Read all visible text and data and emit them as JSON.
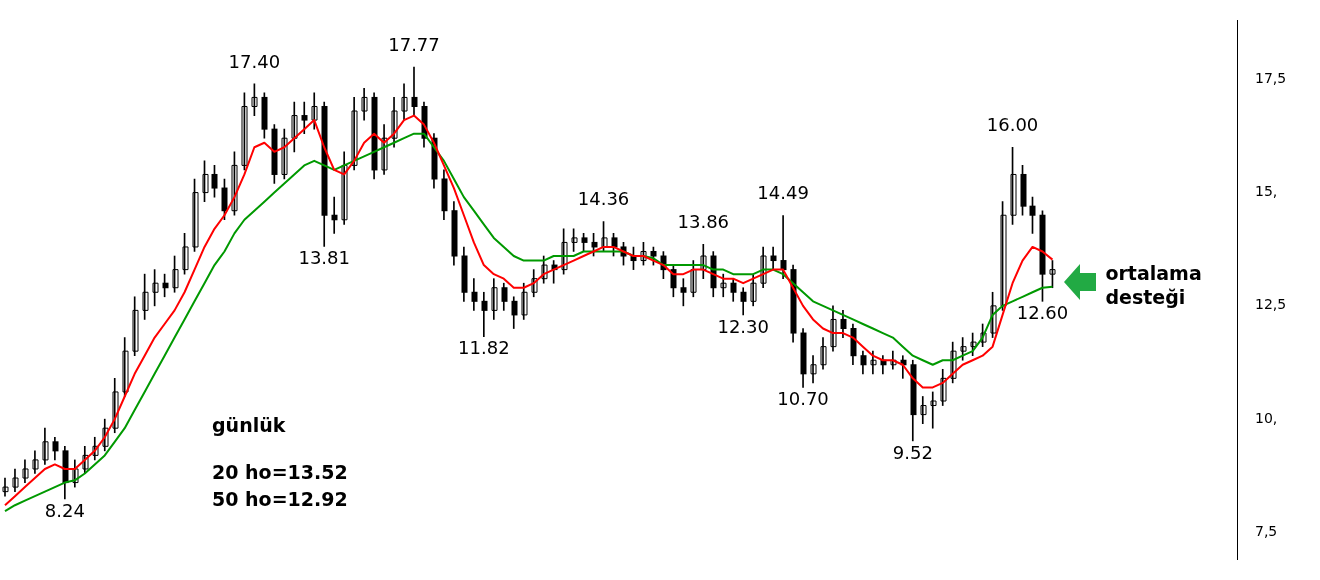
{
  "chart_data": {
    "type": "candlestick",
    "tick_labels": "y",
    "ylim": [
      6.9,
      18.8
    ],
    "yticks": [
      {
        "value": 7.5,
        "label": "7,5"
      },
      {
        "value": 10,
        "label": "10,"
      },
      {
        "value": 12.5,
        "label": "12,5"
      },
      {
        "value": 15,
        "label": "15,"
      },
      {
        "value": 17.5,
        "label": "17,5"
      }
    ],
    "color": "#000000",
    "categories": [
      null,
      null,
      null,
      null,
      null,
      null,
      null,
      null,
      null,
      null,
      null,
      null,
      null,
      null,
      null,
      null,
      null,
      null,
      null,
      null,
      null,
      null,
      null,
      null,
      null,
      null,
      null,
      null,
      null,
      null,
      null,
      null,
      null,
      null,
      null,
      null,
      null,
      null,
      null,
      null,
      null,
      null,
      null,
      null,
      null,
      null,
      null,
      null,
      null,
      null,
      null,
      null,
      null,
      null,
      null,
      null,
      null,
      null,
      null,
      null,
      null,
      null,
      null,
      null,
      null,
      null,
      null,
      null,
      null,
      null,
      null,
      null,
      null,
      null,
      null,
      null,
      null,
      null,
      null,
      null,
      null,
      null,
      null,
      null,
      null,
      null,
      null,
      null,
      null,
      null,
      null,
      null,
      null,
      null,
      null,
      null,
      null,
      null,
      null,
      null,
      null,
      null,
      null,
      null,
      null,
      null,
      null,
      null,
      null,
      null,
      null,
      null,
      null,
      null,
      null,
      null,
      null,
      null,
      null,
      null,
      null,
      null,
      null,
      null
    ],
    "ohlc": [
      [
        8.4,
        8.7,
        8.3,
        8.5
      ],
      [
        8.5,
        8.9,
        8.4,
        8.7
      ],
      [
        8.7,
        9.1,
        8.6,
        8.9
      ],
      [
        8.9,
        9.3,
        8.8,
        9.1
      ],
      [
        9.1,
        9.8,
        9.0,
        9.5
      ],
      [
        9.5,
        9.6,
        9.1,
        9.3
      ],
      [
        9.3,
        9.4,
        8.24,
        8.6
      ],
      [
        8.6,
        9.1,
        8.5,
        8.9
      ],
      [
        8.9,
        9.4,
        8.8,
        9.2
      ],
      [
        9.2,
        9.6,
        9.1,
        9.4
      ],
      [
        9.4,
        10.0,
        9.3,
        9.8
      ],
      [
        9.8,
        10.9,
        9.7,
        10.6
      ],
      [
        10.6,
        11.8,
        10.5,
        11.5
      ],
      [
        11.5,
        12.7,
        11.4,
        12.4
      ],
      [
        12.4,
        13.2,
        12.2,
        12.8
      ],
      [
        12.8,
        13.3,
        12.5,
        13.0
      ],
      [
        13.0,
        13.2,
        12.7,
        12.9
      ],
      [
        12.9,
        13.6,
        12.8,
        13.3
      ],
      [
        13.3,
        14.1,
        13.2,
        13.8
      ],
      [
        13.8,
        15.3,
        13.7,
        15.0
      ],
      [
        15.0,
        15.7,
        14.8,
        15.4
      ],
      [
        15.4,
        15.6,
        14.9,
        15.1
      ],
      [
        15.1,
        15.3,
        14.4,
        14.6
      ],
      [
        14.6,
        15.9,
        14.5,
        15.6
      ],
      [
        15.6,
        17.2,
        15.5,
        16.9
      ],
      [
        16.9,
        17.4,
        16.7,
        17.1
      ],
      [
        17.1,
        17.2,
        16.2,
        16.4
      ],
      [
        16.4,
        16.5,
        15.2,
        15.4
      ],
      [
        15.4,
        16.4,
        15.3,
        16.2
      ],
      [
        16.2,
        17.0,
        15.9,
        16.7
      ],
      [
        16.7,
        17.0,
        16.3,
        16.6
      ],
      [
        16.6,
        17.2,
        16.4,
        16.9
      ],
      [
        16.9,
        17.0,
        13.81,
        14.5
      ],
      [
        14.5,
        14.9,
        14.1,
        14.4
      ],
      [
        14.4,
        15.9,
        14.3,
        15.6
      ],
      [
        15.6,
        17.1,
        15.5,
        16.8
      ],
      [
        16.8,
        17.3,
        16.6,
        17.1
      ],
      [
        17.1,
        17.2,
        15.3,
        15.5
      ],
      [
        15.5,
        16.5,
        15.4,
        16.2
      ],
      [
        16.2,
        17.1,
        16.0,
        16.8
      ],
      [
        16.8,
        17.4,
        16.6,
        17.1
      ],
      [
        17.1,
        17.77,
        16.7,
        16.9
      ],
      [
        16.9,
        17.0,
        16.0,
        16.2
      ],
      [
        16.2,
        16.3,
        15.1,
        15.3
      ],
      [
        15.3,
        15.5,
        14.4,
        14.6
      ],
      [
        14.6,
        14.8,
        13.4,
        13.6
      ],
      [
        13.6,
        13.8,
        12.6,
        12.8
      ],
      [
        12.8,
        13.1,
        12.4,
        12.6
      ],
      [
        12.6,
        12.8,
        11.82,
        12.4
      ],
      [
        12.4,
        13.1,
        12.2,
        12.9
      ],
      [
        12.9,
        13.0,
        12.4,
        12.6
      ],
      [
        12.6,
        12.7,
        12.0,
        12.3
      ],
      [
        12.3,
        13.0,
        12.2,
        12.8
      ],
      [
        12.8,
        13.3,
        12.7,
        13.1
      ],
      [
        13.1,
        13.6,
        13.0,
        13.4
      ],
      [
        13.4,
        13.5,
        13.0,
        13.3
      ],
      [
        13.3,
        14.2,
        13.2,
        13.9
      ],
      [
        13.9,
        14.2,
        13.7,
        14.0
      ],
      [
        14.0,
        14.1,
        13.7,
        13.9
      ],
      [
        13.9,
        14.1,
        13.6,
        13.8
      ],
      [
        13.8,
        14.36,
        13.7,
        14.0
      ],
      [
        14.0,
        14.1,
        13.6,
        13.8
      ],
      [
        13.8,
        13.9,
        13.4,
        13.6
      ],
      [
        13.6,
        13.8,
        13.3,
        13.5
      ],
      [
        13.5,
        13.9,
        13.4,
        13.7
      ],
      [
        13.7,
        13.8,
        13.4,
        13.6
      ],
      [
        13.6,
        13.7,
        13.1,
        13.3
      ],
      [
        13.3,
        13.4,
        12.7,
        12.9
      ],
      [
        12.9,
        13.1,
        12.5,
        12.8
      ],
      [
        12.8,
        13.5,
        12.7,
        13.3
      ],
      [
        13.3,
        13.86,
        13.1,
        13.6
      ],
      [
        13.6,
        13.7,
        12.7,
        12.9
      ],
      [
        12.9,
        13.2,
        12.7,
        13.0
      ],
      [
        13.0,
        13.1,
        12.6,
        12.8
      ],
      [
        12.8,
        12.9,
        12.3,
        12.6
      ],
      [
        12.6,
        13.2,
        12.5,
        13.0
      ],
      [
        13.0,
        13.8,
        12.9,
        13.6
      ],
      [
        13.6,
        13.8,
        13.3,
        13.5
      ],
      [
        13.5,
        14.49,
        13.1,
        13.3
      ],
      [
        13.3,
        13.4,
        11.7,
        11.9
      ],
      [
        11.9,
        12.0,
        10.7,
        11.0
      ],
      [
        11.0,
        11.4,
        10.8,
        11.2
      ],
      [
        11.2,
        11.8,
        11.1,
        11.6
      ],
      [
        11.6,
        12.5,
        11.5,
        12.2
      ],
      [
        12.2,
        12.4,
        11.8,
        12.0
      ],
      [
        12.0,
        12.1,
        11.2,
        11.4
      ],
      [
        11.4,
        11.5,
        11.0,
        11.2
      ],
      [
        11.2,
        11.5,
        11.0,
        11.3
      ],
      [
        11.3,
        11.4,
        11.0,
        11.2
      ],
      [
        11.2,
        11.5,
        11.1,
        11.3
      ],
      [
        11.3,
        11.4,
        10.9,
        11.2
      ],
      [
        11.2,
        11.3,
        9.52,
        10.1
      ],
      [
        10.1,
        10.5,
        9.9,
        10.3
      ],
      [
        10.3,
        10.6,
        9.8,
        10.4
      ],
      [
        10.4,
        11.1,
        10.3,
        10.9
      ],
      [
        10.9,
        11.7,
        10.8,
        11.5
      ],
      [
        11.5,
        11.8,
        11.3,
        11.6
      ],
      [
        11.6,
        11.9,
        11.4,
        11.7
      ],
      [
        11.7,
        12.1,
        11.6,
        11.9
      ],
      [
        11.9,
        12.8,
        11.8,
        12.5
      ],
      [
        12.5,
        14.8,
        12.4,
        14.5
      ],
      [
        14.5,
        16.0,
        14.3,
        15.4
      ],
      [
        15.4,
        15.6,
        14.5,
        14.7
      ],
      [
        14.7,
        14.9,
        14.1,
        14.5
      ],
      [
        14.5,
        14.6,
        12.6,
        13.2
      ],
      [
        13.2,
        13.5,
        12.9,
        13.3
      ],
      null,
      null,
      null,
      null,
      null,
      null,
      null,
      null,
      null,
      null,
      null,
      null,
      null,
      null,
      null,
      null,
      null,
      null
    ],
    "series": [
      {
        "type": "line",
        "color": "#ff0000",
        "values": [
          8.1,
          8.3,
          8.5,
          8.7,
          8.9,
          9.0,
          8.9,
          8.9,
          9.1,
          9.3,
          9.6,
          10.0,
          10.5,
          11.0,
          11.4,
          11.8,
          12.1,
          12.4,
          12.8,
          13.3,
          13.8,
          14.2,
          14.5,
          14.9,
          15.4,
          16.0,
          16.1,
          15.9,
          16.0,
          16.2,
          16.4,
          16.6,
          16.0,
          15.5,
          15.4,
          15.7,
          16.1,
          16.3,
          16.1,
          16.3,
          16.6,
          16.7,
          16.5,
          16.1,
          15.6,
          15.1,
          14.5,
          13.9,
          13.4,
          13.2,
          13.1,
          12.9,
          12.9,
          13.0,
          13.2,
          13.3,
          13.4,
          13.5,
          13.6,
          13.7,
          13.8,
          13.8,
          13.7,
          13.6,
          13.6,
          13.5,
          13.4,
          13.2,
          13.2,
          13.3,
          13.3,
          13.2,
          13.1,
          13.1,
          13.0,
          13.1,
          13.2,
          13.3,
          13.3,
          12.9,
          12.5,
          12.2,
          12.0,
          11.9,
          11.9,
          11.8,
          11.6,
          11.4,
          11.3,
          11.3,
          11.2,
          10.9,
          10.7,
          10.7,
          10.8,
          11.0,
          11.2,
          11.3,
          11.4,
          11.6,
          12.3,
          13.0,
          13.5,
          13.8,
          13.7,
          13.52,
          null,
          null,
          null,
          null,
          null,
          null,
          null,
          null,
          null,
          null,
          null,
          null,
          null,
          null,
          null,
          null,
          null,
          null
        ]
      },
      {
        "type": "line",
        "color": "#009900",
        "values": [
          7.97,
          8.1,
          8.2,
          8.3,
          8.4,
          8.5,
          8.6,
          8.65,
          8.8,
          9.0,
          9.2,
          9.5,
          9.8,
          10.2,
          10.6,
          11.0,
          11.4,
          11.8,
          12.2,
          12.6,
          13.0,
          13.4,
          13.7,
          14.1,
          14.4,
          14.6,
          14.8,
          15.0,
          15.2,
          15.4,
          15.6,
          15.7,
          15.6,
          15.5,
          15.6,
          15.7,
          15.8,
          15.9,
          16.0,
          16.1,
          16.2,
          16.3,
          16.3,
          16.0,
          15.7,
          15.3,
          14.9,
          14.6,
          14.3,
          14.0,
          13.8,
          13.6,
          13.5,
          13.5,
          13.5,
          13.6,
          13.6,
          13.6,
          13.7,
          13.7,
          13.7,
          13.7,
          13.7,
          13.6,
          13.6,
          13.55,
          13.4,
          13.4,
          13.4,
          13.4,
          13.4,
          13.3,
          13.3,
          13.2,
          13.2,
          13.2,
          13.3,
          13.3,
          13.2,
          13.0,
          12.8,
          12.6,
          12.5,
          12.4,
          12.3,
          12.2,
          12.1,
          12.0,
          11.9,
          11.8,
          11.6,
          11.4,
          11.3,
          11.2,
          11.3,
          11.3,
          11.4,
          11.5,
          11.8,
          12.3,
          12.5,
          12.6,
          12.7,
          12.8,
          12.9,
          12.92,
          null,
          null,
          null,
          null,
          null,
          null,
          null,
          null,
          null,
          null,
          null,
          null,
          null,
          null,
          null,
          null,
          null,
          null
        ]
      }
    ],
    "annotations": [
      {
        "text": "8.24",
        "y": 8.24
      },
      {
        "text": "17.40",
        "y": 17.4
      },
      {
        "text": "13.81",
        "y": 13.81
      },
      {
        "text": "17.77",
        "y": 17.77
      },
      {
        "text": "11.82",
        "y": 11.82
      },
      {
        "text": "14.36",
        "y": 14.36
      },
      {
        "text": "13.86",
        "y": 13.86
      },
      {
        "text": "12.30",
        "y": 12.3
      },
      {
        "text": "14.49",
        "y": 14.49
      },
      {
        "text": "10.70",
        "y": 10.7
      },
      {
        "text": "9.52",
        "y": 9.52
      },
      {
        "text": "16.00",
        "y": 16.0
      },
      {
        "text": "12.60",
        "y": 12.6
      },
      "ortalama desteği",
      "günlük",
      "20 ho=13.52",
      "50 ho=12.92"
    ]
  }
}
